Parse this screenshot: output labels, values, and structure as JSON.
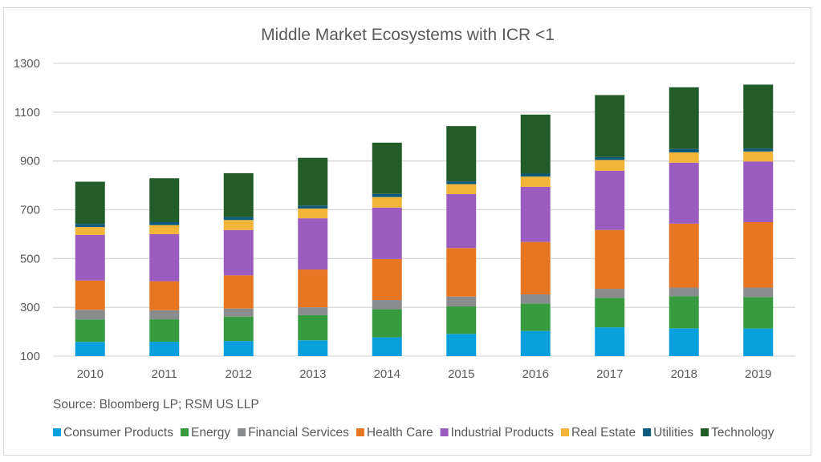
{
  "chart_data": {
    "type": "bar",
    "stacked": true,
    "title": "Middle Market Ecosystems with ICR <1",
    "xlabel": "",
    "ylabel": "",
    "ylim": [
      100,
      1300
    ],
    "yticks": [
      100,
      300,
      500,
      700,
      900,
      1100,
      1300
    ],
    "grid": true,
    "legend_position": "bottom",
    "source": "Source:  Bloomberg LP; RSM US LLP",
    "categories": [
      "2010",
      "2011",
      "2012",
      "2013",
      "2014",
      "2015",
      "2016",
      "2017",
      "2018",
      "2019"
    ],
    "series": [
      {
        "name": "Consumer Products",
        "color": "#0a9fdd",
        "values": [
          158,
          159,
          162,
          165,
          177,
          191,
          203,
          218,
          214,
          213
        ]
      },
      {
        "name": "Energy",
        "color": "#379c40",
        "values": [
          92,
          92,
          100,
          103,
          115,
          113,
          112,
          121,
          132,
          129
        ]
      },
      {
        "name": "Financial Services",
        "color": "#898b8d",
        "values": [
          40,
          37,
          33,
          32,
          38,
          40,
          38,
          37,
          35,
          39
        ]
      },
      {
        "name": "Health Care",
        "color": "#e77622",
        "values": [
          120,
          119,
          136,
          155,
          168,
          199,
          215,
          241,
          262,
          268
        ]
      },
      {
        "name": "Industrial Products",
        "color": "#9b5cbf",
        "values": [
          187,
          193,
          186,
          210,
          211,
          221,
          226,
          243,
          250,
          249
        ]
      },
      {
        "name": "Real Estate",
        "color": "#f3b538",
        "values": [
          32,
          37,
          41,
          40,
          43,
          41,
          42,
          44,
          42,
          41
        ]
      },
      {
        "name": "Utilities",
        "color": "#0b5a7e",
        "values": [
          13,
          12,
          12,
          12,
          13,
          11,
          12,
          12,
          14,
          12
        ]
      },
      {
        "name": "Technology",
        "color": "#225c28",
        "values": [
          173,
          180,
          180,
          196,
          210,
          227,
          242,
          254,
          253,
          262
        ]
      }
    ]
  }
}
